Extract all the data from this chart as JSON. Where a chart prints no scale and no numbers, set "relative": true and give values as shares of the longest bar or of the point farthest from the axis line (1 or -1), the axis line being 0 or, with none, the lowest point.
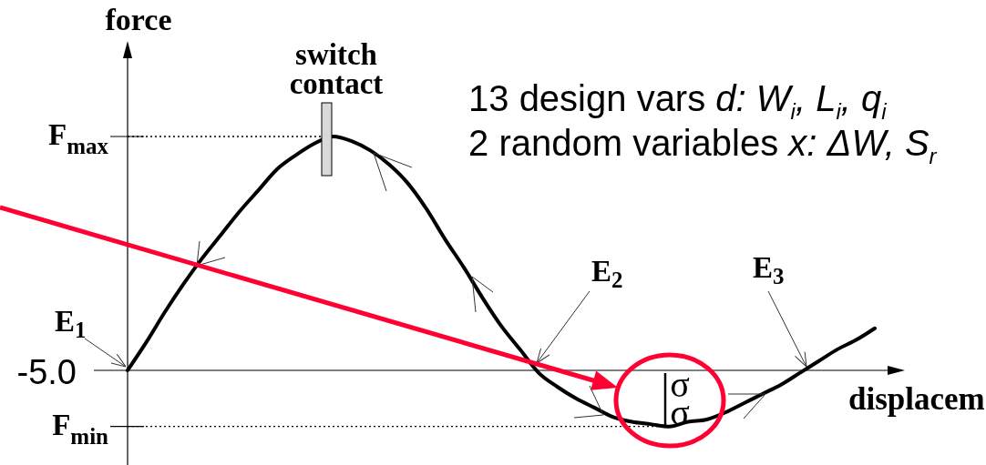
{
  "chart_data": {
    "type": "line",
    "relative": true,
    "xlabel": "displacem",
    "ylabel": "force",
    "categories": [
      null,
      null,
      null,
      null,
      null,
      null,
      null,
      null,
      null,
      null,
      null,
      null,
      null,
      null,
      null,
      null,
      null,
      null,
      null,
      null,
      null,
      null,
      null,
      null,
      null,
      null,
      null,
      null,
      null,
      null,
      null,
      null,
      null,
      null,
      null,
      null,
      null,
      null,
      null,
      null,
      null
    ],
    "series": [
      {
        "color": "#000000",
        "values": [
          0,
          0.12,
          0.25,
          0.37,
          0.48,
          0.58,
          0.68,
          0.77,
          0.86,
          0.92,
          0.97,
          1,
          0.98,
          0.94,
          0.88,
          0.8,
          0.69,
          0.56,
          0.44,
          0.31,
          0.19,
          0.09,
          -0.01,
          -0.07,
          -0.12,
          -0.16,
          -0.2,
          -0.22,
          -0.23,
          -0.24,
          -0.22,
          -0.21,
          -0.18,
          -0.14,
          -0.1,
          -0.06,
          -0.01,
          0.04,
          0.09,
          0.13,
          0.18
        ]
      }
    ],
    "ref_lines": [
      {
        "axis": "y",
        "value": 1,
        "label": "F$_{max}$",
        "line_style": "dotted",
        "color": "#000000"
      },
      {
        "axis": "y",
        "value": -0.24,
        "label": "F$_{min}$",
        "line_style": "dotted",
        "color": "#000000"
      }
    ],
    "annotations": [
      {
        "text": "switch contact",
        "y": 1
      },
      "13 design vars d: W$_{i}$, L$_{i}$, q$_{i}$",
      "2 random variables x: ΔW, S$_{r}$",
      "E$_{1}$",
      "E$_{2}$",
      "E$_{3}$",
      "-5.0",
      "σσ"
    ]
  }
}
